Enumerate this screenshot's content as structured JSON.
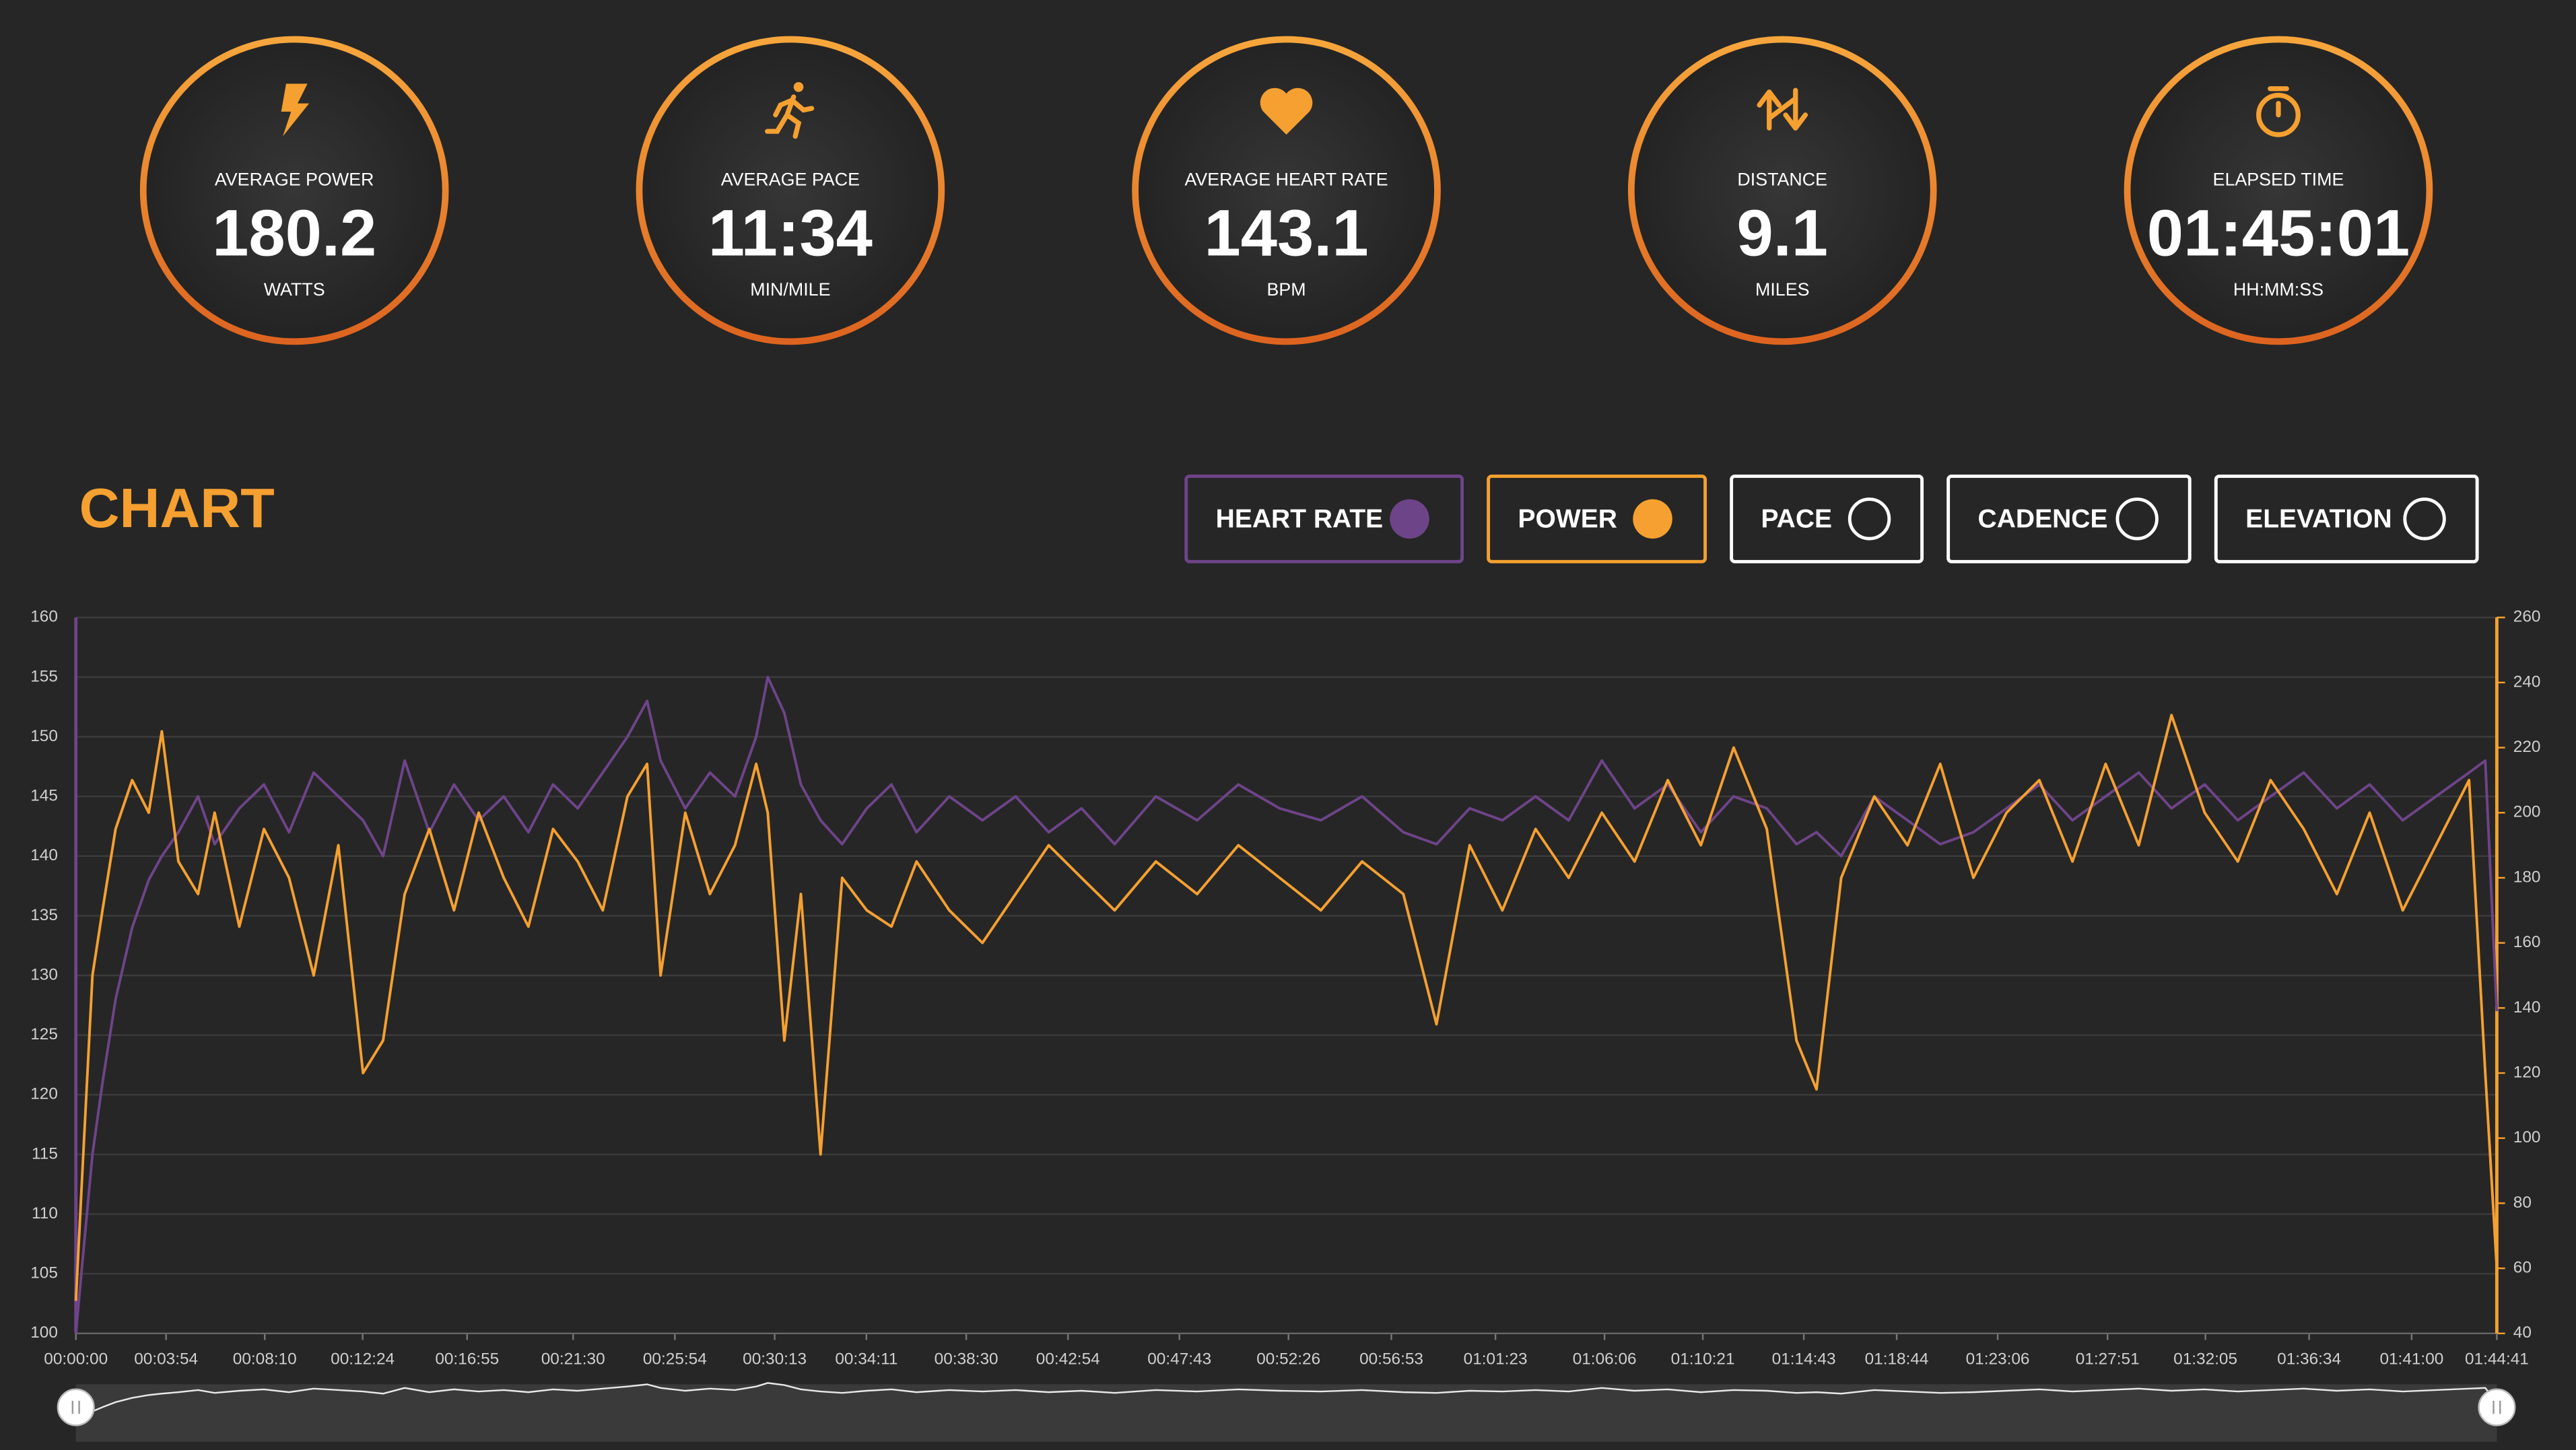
{
  "stats": [
    {
      "title": "AVERAGE POWER",
      "value": "180.2",
      "unit": "WATTS"
    },
    {
      "title": "AVERAGE PACE",
      "value": "11:34",
      "unit": "MIN/MILE"
    },
    {
      "title": "AVERAGE HEART RATE",
      "value": "143.1",
      "unit": "BPM"
    },
    {
      "title": "DISTANCE",
      "value": "9.1",
      "unit": "MILES"
    },
    {
      "title": "ELAPSED TIME",
      "value": "01:45:01",
      "unit": "HH:MM:SS"
    }
  ],
  "chart_header": "CHART",
  "toggles": [
    {
      "label": "PACE"
    },
    {
      "label": "CADENCE"
    },
    {
      "label": "ELEVATION"
    }
  ],
  "chart_data": {
    "type": "line",
    "x": [
      0,
      17,
      43,
      69,
      103,
      146,
      189,
      223,
      266,
      317,
      360,
      424,
      488,
      553,
      617,
      681,
      745,
      797,
      853,
      917,
      981,
      1045,
      1110,
      1174,
      1238,
      1302,
      1367,
      1431,
      1482,
      1517,
      1581,
      1645,
      1710,
      1765,
      1795,
      1838,
      1881,
      1932,
      1988,
      2052,
      2116,
      2181,
      2266,
      2352,
      2438,
      2524,
      2609,
      2695,
      2802,
      2909,
      3016,
      3123,
      3230,
      3337,
      3444,
      3530,
      3616,
      3701,
      3787,
      3873,
      3959,
      4044,
      4130,
      4216,
      4301,
      4387,
      4464,
      4516,
      4580,
      4666,
      4752,
      4837,
      4923,
      5009,
      5094,
      5180,
      5266,
      5352,
      5437,
      5523,
      5609,
      5694,
      5780,
      5866,
      5951,
      6037,
      6123,
      6209,
      6251,
      6281
    ],
    "xlim": [
      0,
      6281
    ],
    "xticks": [
      {
        "value": 0,
        "label": "00:00:00"
      },
      {
        "value": 234,
        "label": "00:03:54"
      },
      {
        "value": 490,
        "label": "00:08:10"
      },
      {
        "value": 744,
        "label": "00:12:24"
      },
      {
        "value": 1015,
        "label": "00:16:55"
      },
      {
        "value": 1290,
        "label": "00:21:30"
      },
      {
        "value": 1554,
        "label": "00:25:54"
      },
      {
        "value": 1813,
        "label": "00:30:13"
      },
      {
        "value": 2051,
        "label": "00:34:11"
      },
      {
        "value": 2310,
        "label": "00:38:30"
      },
      {
        "value": 2574,
        "label": "00:42:54"
      },
      {
        "value": 2863,
        "label": "00:47:43"
      },
      {
        "value": 3146,
        "label": "00:52:26"
      },
      {
        "value": 3413,
        "label": "00:56:53"
      },
      {
        "value": 3683,
        "label": "01:01:23"
      },
      {
        "value": 3966,
        "label": "01:06:06"
      },
      {
        "value": 4221,
        "label": "01:10:21"
      },
      {
        "value": 4483,
        "label": "01:14:43"
      },
      {
        "value": 4724,
        "label": "01:18:44"
      },
      {
        "value": 4986,
        "label": "01:23:06"
      },
      {
        "value": 5271,
        "label": "01:27:51"
      },
      {
        "value": 5525,
        "label": "01:32:05"
      },
      {
        "value": 5794,
        "label": "01:36:34"
      },
      {
        "value": 6060,
        "label": "01:41:00"
      },
      {
        "value": 6281,
        "label": "01:44:41"
      }
    ],
    "ylim": [
      100,
      160
    ],
    "yticks": [
      100,
      105,
      110,
      115,
      120,
      125,
      130,
      135,
      140,
      145,
      150,
      155,
      160
    ],
    "y2lim": [
      40,
      260
    ],
    "y2ticks": [
      40,
      60,
      80,
      100,
      120,
      140,
      160,
      180,
      200,
      220,
      240,
      260
    ],
    "grid": true,
    "series": [
      {
        "name": "HEART RATE",
        "color": "#6e4489",
        "values": [
          100,
          106,
          115,
          121,
          128,
          134,
          138,
          140,
          142,
          145,
          141,
          144,
          146,
          142,
          147,
          145,
          143,
          140,
          148,
          142,
          146,
          143,
          145,
          142,
          146,
          144,
          147,
          150,
          153,
          148,
          144,
          147,
          145,
          150,
          155,
          152,
          146,
          143,
          141,
          144,
          146,
          142,
          145,
          143,
          145,
          142,
          144,
          141,
          145,
          143,
          146,
          144,
          143,
          145,
          142,
          141,
          144,
          143,
          145,
          143,
          148,
          144,
          146,
          142,
          145,
          144,
          141,
          142,
          140,
          145,
          143,
          141,
          142,
          144,
          146,
          143,
          145,
          147,
          144,
          146,
          143,
          145,
          147,
          144,
          146,
          143,
          145,
          147,
          148,
          127
        ]
      },
      {
        "name": "POWER",
        "color": "#f5a030",
        "axis": "y2",
        "values": [
          50,
          90,
          150,
          170,
          195,
          210,
          200,
          225,
          185,
          175,
          200,
          165,
          195,
          180,
          150,
          190,
          120,
          130,
          175,
          195,
          170,
          200,
          180,
          165,
          195,
          185,
          170,
          205,
          215,
          150,
          200,
          175,
          190,
          215,
          200,
          130,
          175,
          95,
          180,
          170,
          165,
          185,
          170,
          160,
          175,
          190,
          180,
          170,
          185,
          175,
          190,
          180,
          170,
          185,
          175,
          135,
          190,
          170,
          195,
          180,
          200,
          185,
          210,
          190,
          220,
          195,
          130,
          115,
          180,
          205,
          190,
          215,
          180,
          200,
          210,
          185,
          215,
          190,
          230,
          200,
          185,
          210,
          195,
          175,
          200,
          170,
          190,
          210,
          120,
          60
        ]
      }
    ]
  }
}
